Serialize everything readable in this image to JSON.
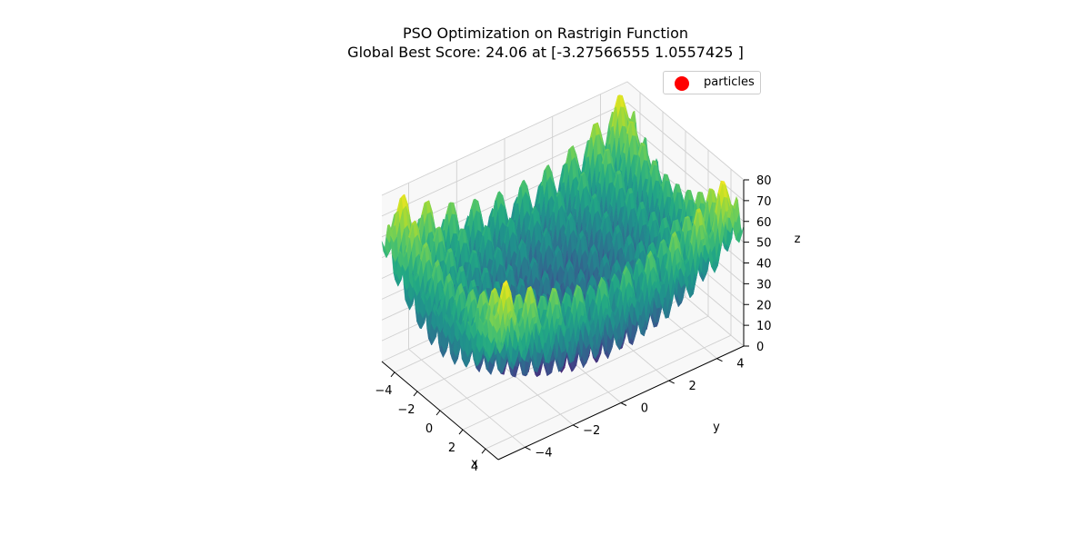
{
  "chart_data": {
    "type": "surface3d",
    "title": "PSO Optimization on Rastrigin Function",
    "subtitle": "Global Best Score: 24.06 at [-3.27566555  1.0557425 ]",
    "function": "Rastrigin",
    "xlabel": "x",
    "ylabel": "y",
    "zlabel": "z",
    "xlim": [
      -5.12,
      5.12
    ],
    "ylim": [
      -5.12,
      5.12
    ],
    "zlim": [
      0,
      80
    ],
    "xticks": [
      "−4",
      "−2",
      "0",
      "2",
      "4"
    ],
    "yticks": [
      "−4",
      "−2",
      "0",
      "2",
      "4"
    ],
    "zticks": [
      "0",
      "10",
      "20",
      "30",
      "40",
      "50",
      "60",
      "70",
      "80"
    ],
    "xtick_values": [
      -4,
      -2,
      0,
      2,
      4
    ],
    "ytick_values": [
      -4,
      -2,
      0,
      2,
      4
    ],
    "ztick_values": [
      0,
      10,
      20,
      30,
      40,
      50,
      60,
      70,
      80
    ],
    "colormap": "viridis",
    "grid": true,
    "legend_position": "top-right",
    "series": [
      {
        "name": "particles",
        "kind": "scatter",
        "color": "#ff0000"
      }
    ],
    "global_best": {
      "score": 24.06,
      "position": [
        -3.27566555,
        1.0557425
      ]
    }
  }
}
